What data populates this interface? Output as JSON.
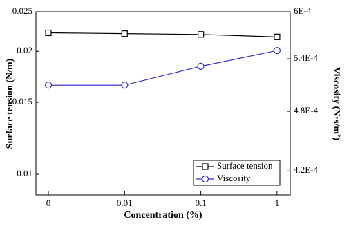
{
  "chart_data": {
    "type": "line",
    "categories": [
      "0",
      "0.01",
      "0.1",
      "1"
    ],
    "x_label": "Concentration (%)",
    "y_label": "Surface tension (N/m)",
    "y2_label": "Viscosity (N·s/m²)",
    "ylim": [
      0.0089,
      0.025
    ],
    "yticks": [
      0.01,
      0.015,
      0.02,
      0.025
    ],
    "ylog": true,
    "y2lim": [
      0.000398,
      0.0006
    ],
    "y2log": true,
    "y2ticks": [
      {
        "value": 0.00042,
        "label": "4.2E-4"
      },
      {
        "value": 0.00048,
        "label": "4.8E-4"
      },
      {
        "value": 0.00054,
        "label": "5.4E-4"
      },
      {
        "value": 0.0006,
        "label": "6E-4"
      }
    ],
    "legend": "lower right",
    "series": [
      {
        "name": "Surface tension",
        "color": "#000000",
        "marker": "square",
        "values": [
          0.0222,
          0.0221,
          0.022,
          0.0217
        ]
      },
      {
        "name": "Viscosity",
        "color": "#2a2ad0",
        "marker": "circle",
        "axis": "y2",
        "values": [
          0.000509,
          0.000509,
          0.000531,
          0.00055
        ]
      }
    ]
  }
}
